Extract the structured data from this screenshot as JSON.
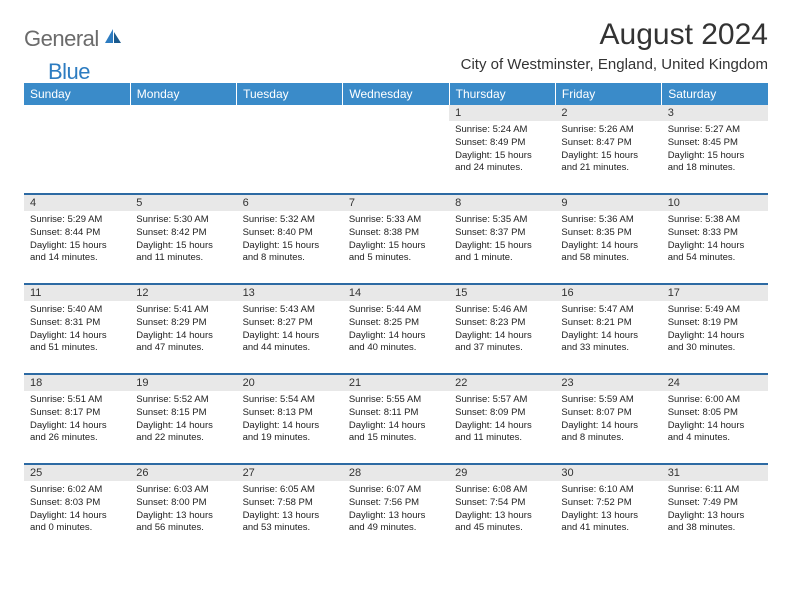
{
  "logo": {
    "gray": "General",
    "blue": "Blue"
  },
  "title": "August 2024",
  "location": "City of Westminster, England, United Kingdom",
  "colors": {
    "header_bg": "#3a8bc9",
    "header_text": "#ffffff",
    "sep": "#2d6aa3",
    "daynum_bg": "#e8e8e8",
    "logo_gray": "#6b6b6b",
    "logo_blue": "#2d7cc1"
  },
  "dow": [
    "Sunday",
    "Monday",
    "Tuesday",
    "Wednesday",
    "Thursday",
    "Friday",
    "Saturday"
  ],
  "weeks": [
    [
      null,
      null,
      null,
      null,
      {
        "n": "1",
        "sr": "5:24 AM",
        "ss": "8:49 PM",
        "dl": "15 hours and 24 minutes."
      },
      {
        "n": "2",
        "sr": "5:26 AM",
        "ss": "8:47 PM",
        "dl": "15 hours and 21 minutes."
      },
      {
        "n": "3",
        "sr": "5:27 AM",
        "ss": "8:45 PM",
        "dl": "15 hours and 18 minutes."
      }
    ],
    [
      {
        "n": "4",
        "sr": "5:29 AM",
        "ss": "8:44 PM",
        "dl": "15 hours and 14 minutes."
      },
      {
        "n": "5",
        "sr": "5:30 AM",
        "ss": "8:42 PM",
        "dl": "15 hours and 11 minutes."
      },
      {
        "n": "6",
        "sr": "5:32 AM",
        "ss": "8:40 PM",
        "dl": "15 hours and 8 minutes."
      },
      {
        "n": "7",
        "sr": "5:33 AM",
        "ss": "8:38 PM",
        "dl": "15 hours and 5 minutes."
      },
      {
        "n": "8",
        "sr": "5:35 AM",
        "ss": "8:37 PM",
        "dl": "15 hours and 1 minute."
      },
      {
        "n": "9",
        "sr": "5:36 AM",
        "ss": "8:35 PM",
        "dl": "14 hours and 58 minutes."
      },
      {
        "n": "10",
        "sr": "5:38 AM",
        "ss": "8:33 PM",
        "dl": "14 hours and 54 minutes."
      }
    ],
    [
      {
        "n": "11",
        "sr": "5:40 AM",
        "ss": "8:31 PM",
        "dl": "14 hours and 51 minutes."
      },
      {
        "n": "12",
        "sr": "5:41 AM",
        "ss": "8:29 PM",
        "dl": "14 hours and 47 minutes."
      },
      {
        "n": "13",
        "sr": "5:43 AM",
        "ss": "8:27 PM",
        "dl": "14 hours and 44 minutes."
      },
      {
        "n": "14",
        "sr": "5:44 AM",
        "ss": "8:25 PM",
        "dl": "14 hours and 40 minutes."
      },
      {
        "n": "15",
        "sr": "5:46 AM",
        "ss": "8:23 PM",
        "dl": "14 hours and 37 minutes."
      },
      {
        "n": "16",
        "sr": "5:47 AM",
        "ss": "8:21 PM",
        "dl": "14 hours and 33 minutes."
      },
      {
        "n": "17",
        "sr": "5:49 AM",
        "ss": "8:19 PM",
        "dl": "14 hours and 30 minutes."
      }
    ],
    [
      {
        "n": "18",
        "sr": "5:51 AM",
        "ss": "8:17 PM",
        "dl": "14 hours and 26 minutes."
      },
      {
        "n": "19",
        "sr": "5:52 AM",
        "ss": "8:15 PM",
        "dl": "14 hours and 22 minutes."
      },
      {
        "n": "20",
        "sr": "5:54 AM",
        "ss": "8:13 PM",
        "dl": "14 hours and 19 minutes."
      },
      {
        "n": "21",
        "sr": "5:55 AM",
        "ss": "8:11 PM",
        "dl": "14 hours and 15 minutes."
      },
      {
        "n": "22",
        "sr": "5:57 AM",
        "ss": "8:09 PM",
        "dl": "14 hours and 11 minutes."
      },
      {
        "n": "23",
        "sr": "5:59 AM",
        "ss": "8:07 PM",
        "dl": "14 hours and 8 minutes."
      },
      {
        "n": "24",
        "sr": "6:00 AM",
        "ss": "8:05 PM",
        "dl": "14 hours and 4 minutes."
      }
    ],
    [
      {
        "n": "25",
        "sr": "6:02 AM",
        "ss": "8:03 PM",
        "dl": "14 hours and 0 minutes."
      },
      {
        "n": "26",
        "sr": "6:03 AM",
        "ss": "8:00 PM",
        "dl": "13 hours and 56 minutes."
      },
      {
        "n": "27",
        "sr": "6:05 AM",
        "ss": "7:58 PM",
        "dl": "13 hours and 53 minutes."
      },
      {
        "n": "28",
        "sr": "6:07 AM",
        "ss": "7:56 PM",
        "dl": "13 hours and 49 minutes."
      },
      {
        "n": "29",
        "sr": "6:08 AM",
        "ss": "7:54 PM",
        "dl": "13 hours and 45 minutes."
      },
      {
        "n": "30",
        "sr": "6:10 AM",
        "ss": "7:52 PM",
        "dl": "13 hours and 41 minutes."
      },
      {
        "n": "31",
        "sr": "6:11 AM",
        "ss": "7:49 PM",
        "dl": "13 hours and 38 minutes."
      }
    ]
  ],
  "labels": {
    "sunrise": "Sunrise:",
    "sunset": "Sunset:",
    "daylight": "Daylight:"
  }
}
